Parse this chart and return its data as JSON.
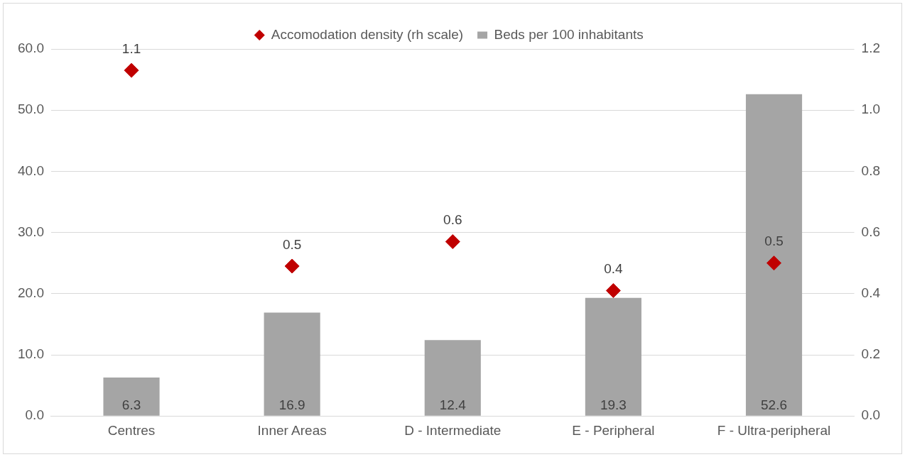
{
  "chart_data": {
    "type": "bar",
    "categories": [
      "Centres",
      "Inner Areas",
      "D - Intermediate",
      "E - Peripheral",
      "F - Ultra-peripheral"
    ],
    "series": [
      {
        "name": "Beds per 100 inhabitants",
        "color": "#a5a5a5",
        "values": [
          6.3,
          16.9,
          12.4,
          19.3,
          52.6
        ],
        "value_labels": [
          "6.3",
          "16.9",
          "12.4",
          "19.3",
          "52.6"
        ]
      },
      {
        "name": "Accomodation density (rh scale)",
        "type": "scatter",
        "axis": "y2",
        "color": "#c00000",
        "values": [
          1.13,
          0.49,
          0.57,
          0.41,
          0.5
        ],
        "value_labels": [
          "1.1",
          "0.5",
          "0.6",
          "0.4",
          "0.5"
        ]
      }
    ],
    "ylim": [
      0,
      60
    ],
    "yticks": [
      {
        "value": 0,
        "label": "0.0"
      },
      {
        "value": 10,
        "label": "10.0"
      },
      {
        "value": 20,
        "label": "20.0"
      },
      {
        "value": 30,
        "label": "30.0"
      },
      {
        "value": 40,
        "label": "40.0"
      },
      {
        "value": 50,
        "label": "50.0"
      },
      {
        "value": 60,
        "label": "60.0"
      }
    ],
    "y2lim": [
      0,
      1.2
    ],
    "y2ticks": [
      {
        "value": 0,
        "label": "0.0"
      },
      {
        "value": 0.2,
        "label": "0.2"
      },
      {
        "value": 0.4,
        "label": "0.4"
      },
      {
        "value": 0.6,
        "label": "0.6"
      },
      {
        "value": 0.8,
        "label": "0.8"
      },
      {
        "value": 1,
        "label": "1.0"
      },
      {
        "value": 1.2,
        "label": "1.2"
      }
    ],
    "grid": "y",
    "legend": "top",
    "marker": "diamond"
  }
}
